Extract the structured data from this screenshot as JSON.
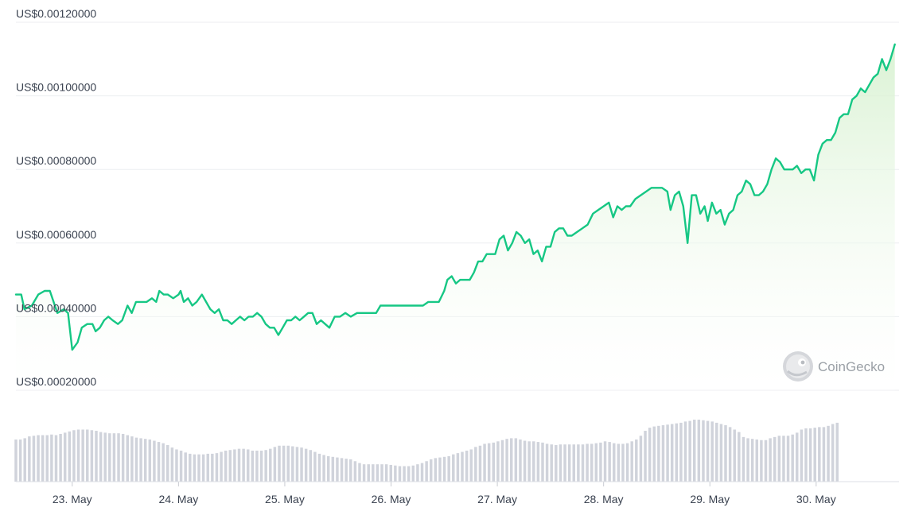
{
  "watermark": {
    "text": "CoinGecko",
    "icon": "coingecko-gecko-icon"
  },
  "colors": {
    "line": "#16c784",
    "fill_top": "#d6f1cf",
    "fill_bottom": "#ffffff",
    "grid": "#eceef1",
    "volume": "#d0d3db",
    "text": "#3a4250"
  },
  "chart_data": [
    {
      "type": "area",
      "title": "",
      "xlabel": "",
      "ylabel": "",
      "y_ticks": [
        "US$0.00020000",
        "US$0.00040000",
        "US$0.00060000",
        "US$0.00080000",
        "US$0.00100000",
        "US$0.00120000"
      ],
      "y_tick_values": [
        0.0002,
        0.0004,
        0.0006,
        0.0008,
        0.001,
        0.0012
      ],
      "ylim": [
        0.0002,
        0.0012
      ],
      "x_ticks": [
        "23. May",
        "24. May",
        "25. May",
        "26. May",
        "27. May",
        "28. May",
        "29. May",
        "30. May"
      ],
      "x_tick_values": [
        23,
        24,
        25,
        26,
        27,
        28,
        29,
        30
      ],
      "xlim": [
        22.47,
        30.78
      ],
      "grid": true,
      "legend": "none",
      "series": [
        {
          "points": [
            [
              22.47,
              0.00046
            ],
            [
              22.52,
              0.00046
            ],
            [
              22.55,
              0.00042
            ],
            [
              22.62,
              0.00043
            ],
            [
              22.68,
              0.00046
            ],
            [
              22.74,
              0.00047
            ],
            [
              22.79,
              0.00047
            ],
            [
              22.86,
              0.00041
            ],
            [
              22.92,
              0.00042
            ],
            [
              22.96,
              0.00041
            ],
            [
              23.0,
              0.00031
            ],
            [
              23.05,
              0.00033
            ],
            [
              23.09,
              0.00037
            ],
            [
              23.14,
              0.00038
            ],
            [
              23.19,
              0.00038
            ],
            [
              23.22,
              0.00036
            ],
            [
              23.26,
              0.00037
            ],
            [
              23.3,
              0.00039
            ],
            [
              23.34,
              0.0004
            ],
            [
              23.38,
              0.00039
            ],
            [
              23.43,
              0.00038
            ],
            [
              23.47,
              0.00039
            ],
            [
              23.52,
              0.00043
            ],
            [
              23.56,
              0.00041
            ],
            [
              23.6,
              0.00044
            ],
            [
              23.65,
              0.00044
            ],
            [
              23.7,
              0.00044
            ],
            [
              23.75,
              0.00045
            ],
            [
              23.79,
              0.00044
            ],
            [
              23.82,
              0.00047
            ],
            [
              23.86,
              0.00046
            ],
            [
              23.9,
              0.00046
            ],
            [
              23.95,
              0.00045
            ],
            [
              24.0,
              0.00046
            ],
            [
              24.02,
              0.00047
            ],
            [
              24.05,
              0.00044
            ],
            [
              24.09,
              0.00045
            ],
            [
              24.13,
              0.00043
            ],
            [
              24.17,
              0.00044
            ],
            [
              24.22,
              0.00046
            ],
            [
              24.26,
              0.00044
            ],
            [
              24.3,
              0.00042
            ],
            [
              24.34,
              0.00041
            ],
            [
              24.38,
              0.00042
            ],
            [
              24.42,
              0.00039
            ],
            [
              24.46,
              0.00039
            ],
            [
              24.5,
              0.00038
            ],
            [
              24.54,
              0.00039
            ],
            [
              24.58,
              0.0004
            ],
            [
              24.62,
              0.00039
            ],
            [
              24.66,
              0.0004
            ],
            [
              24.7,
              0.0004
            ],
            [
              24.74,
              0.00041
            ],
            [
              24.78,
              0.0004
            ],
            [
              24.82,
              0.00038
            ],
            [
              24.86,
              0.00037
            ],
            [
              24.9,
              0.00037
            ],
            [
              24.94,
              0.00035
            ],
            [
              24.98,
              0.00037
            ],
            [
              25.02,
              0.00039
            ],
            [
              25.06,
              0.00039
            ],
            [
              25.1,
              0.0004
            ],
            [
              25.14,
              0.00039
            ],
            [
              25.18,
              0.0004
            ],
            [
              25.22,
              0.00041
            ],
            [
              25.26,
              0.00041
            ],
            [
              25.3,
              0.00038
            ],
            [
              25.34,
              0.00039
            ],
            [
              25.38,
              0.00038
            ],
            [
              25.42,
              0.00037
            ],
            [
              25.47,
              0.0004
            ],
            [
              25.52,
              0.0004
            ],
            [
              25.57,
              0.00041
            ],
            [
              25.62,
              0.0004
            ],
            [
              25.68,
              0.00041
            ],
            [
              25.74,
              0.00041
            ],
            [
              25.8,
              0.00041
            ],
            [
              25.86,
              0.00041
            ],
            [
              25.9,
              0.00043
            ],
            [
              25.94,
              0.00043
            ],
            [
              26.0,
              0.00043
            ],
            [
              26.05,
              0.00043
            ],
            [
              26.1,
              0.00043
            ],
            [
              26.15,
              0.00043
            ],
            [
              26.2,
              0.00043
            ],
            [
              26.25,
              0.00043
            ],
            [
              26.3,
              0.00043
            ],
            [
              26.35,
              0.00044
            ],
            [
              26.4,
              0.00044
            ],
            [
              26.45,
              0.00044
            ],
            [
              26.5,
              0.00047
            ],
            [
              26.53,
              0.0005
            ],
            [
              26.57,
              0.00051
            ],
            [
              26.61,
              0.00049
            ],
            [
              26.65,
              0.0005
            ],
            [
              26.7,
              0.0005
            ],
            [
              26.74,
              0.0005
            ],
            [
              26.78,
              0.00052
            ],
            [
              26.82,
              0.00055
            ],
            [
              26.86,
              0.00055
            ],
            [
              26.9,
              0.00057
            ],
            [
              26.94,
              0.00057
            ],
            [
              26.98,
              0.00057
            ],
            [
              27.02,
              0.00061
            ],
            [
              27.06,
              0.00062
            ],
            [
              27.1,
              0.00058
            ],
            [
              27.14,
              0.0006
            ],
            [
              27.18,
              0.00063
            ],
            [
              27.22,
              0.00062
            ],
            [
              27.26,
              0.0006
            ],
            [
              27.3,
              0.00061
            ],
            [
              27.34,
              0.00057
            ],
            [
              27.38,
              0.00058
            ],
            [
              27.42,
              0.00055
            ],
            [
              27.46,
              0.00059
            ],
            [
              27.5,
              0.00059
            ],
            [
              27.54,
              0.00063
            ],
            [
              27.58,
              0.00064
            ],
            [
              27.62,
              0.00064
            ],
            [
              27.66,
              0.00062
            ],
            [
              27.7,
              0.00062
            ],
            [
              27.75,
              0.00063
            ],
            [
              27.8,
              0.00064
            ],
            [
              27.85,
              0.00065
            ],
            [
              27.9,
              0.00068
            ],
            [
              27.95,
              0.00069
            ],
            [
              28.0,
              0.0007
            ],
            [
              28.05,
              0.00071
            ],
            [
              28.09,
              0.00067
            ],
            [
              28.13,
              0.0007
            ],
            [
              28.17,
              0.00069
            ],
            [
              28.21,
              0.0007
            ],
            [
              28.25,
              0.0007
            ],
            [
              28.3,
              0.00072
            ],
            [
              28.35,
              0.00073
            ],
            [
              28.4,
              0.00074
            ],
            [
              28.45,
              0.00075
            ],
            [
              28.5,
              0.00075
            ],
            [
              28.55,
              0.00075
            ],
            [
              28.6,
              0.00074
            ],
            [
              28.63,
              0.00069
            ],
            [
              28.67,
              0.00073
            ],
            [
              28.71,
              0.00074
            ],
            [
              28.75,
              0.0007
            ],
            [
              28.79,
              0.0006
            ],
            [
              28.83,
              0.00073
            ],
            [
              28.87,
              0.00073
            ],
            [
              28.91,
              0.00068
            ],
            [
              28.95,
              0.0007
            ],
            [
              28.98,
              0.00066
            ],
            [
              29.02,
              0.00071
            ],
            [
              29.06,
              0.00068
            ],
            [
              29.1,
              0.00069
            ],
            [
              29.14,
              0.00065
            ],
            [
              29.18,
              0.00068
            ],
            [
              29.22,
              0.00069
            ],
            [
              29.26,
              0.00073
            ],
            [
              29.3,
              0.00074
            ],
            [
              29.34,
              0.00077
            ],
            [
              29.38,
              0.00076
            ],
            [
              29.42,
              0.00073
            ],
            [
              29.46,
              0.00073
            ],
            [
              29.5,
              0.00074
            ],
            [
              29.54,
              0.00076
            ],
            [
              29.58,
              0.0008
            ],
            [
              29.62,
              0.00083
            ],
            [
              29.66,
              0.00082
            ],
            [
              29.7,
              0.0008
            ],
            [
              29.74,
              0.0008
            ],
            [
              29.78,
              0.0008
            ],
            [
              29.82,
              0.00081
            ],
            [
              29.86,
              0.00079
            ],
            [
              29.9,
              0.0008
            ],
            [
              29.94,
              0.0008
            ],
            [
              29.98,
              0.00077
            ],
            [
              30.02,
              0.00084
            ],
            [
              30.06,
              0.00087
            ],
            [
              30.1,
              0.00088
            ],
            [
              30.14,
              0.00088
            ],
            [
              30.18,
              0.0009
            ],
            [
              30.22,
              0.00094
            ],
            [
              30.26,
              0.00095
            ],
            [
              30.3,
              0.00095
            ],
            [
              30.34,
              0.00099
            ],
            [
              30.38,
              0.001
            ],
            [
              30.42,
              0.00102
            ],
            [
              30.46,
              0.00101
            ],
            [
              30.5,
              0.00103
            ],
            [
              30.54,
              0.00105
            ],
            [
              30.58,
              0.00106
            ],
            [
              30.62,
              0.0011
            ],
            [
              30.66,
              0.00107
            ],
            [
              30.7,
              0.0011
            ],
            [
              30.74,
              0.00114
            ]
          ]
        }
      ]
    },
    {
      "type": "bar",
      "title": "",
      "xlabel": "",
      "ylabel": "",
      "y_axis": "none",
      "x_start": 22.47,
      "x_step": 0.042,
      "ylim": [
        0,
        1
      ],
      "values": [
        0.68,
        0.68,
        0.7,
        0.73,
        0.74,
        0.75,
        0.75,
        0.75,
        0.76,
        0.75,
        0.77,
        0.79,
        0.81,
        0.83,
        0.84,
        0.84,
        0.84,
        0.83,
        0.82,
        0.8,
        0.79,
        0.78,
        0.78,
        0.78,
        0.77,
        0.75,
        0.73,
        0.71,
        0.7,
        0.69,
        0.68,
        0.66,
        0.64,
        0.62,
        0.59,
        0.55,
        0.52,
        0.5,
        0.47,
        0.45,
        0.44,
        0.44,
        0.44,
        0.45,
        0.45,
        0.46,
        0.48,
        0.5,
        0.51,
        0.52,
        0.53,
        0.53,
        0.52,
        0.5,
        0.5,
        0.5,
        0.51,
        0.53,
        0.56,
        0.58,
        0.58,
        0.58,
        0.57,
        0.56,
        0.55,
        0.53,
        0.51,
        0.48,
        0.45,
        0.43,
        0.41,
        0.4,
        0.39,
        0.38,
        0.37,
        0.36,
        0.33,
        0.3,
        0.28,
        0.28,
        0.28,
        0.28,
        0.28,
        0.28,
        0.27,
        0.26,
        0.25,
        0.25,
        0.25,
        0.26,
        0.28,
        0.3,
        0.33,
        0.36,
        0.38,
        0.39,
        0.4,
        0.41,
        0.44,
        0.46,
        0.48,
        0.5,
        0.52,
        0.56,
        0.58,
        0.61,
        0.62,
        0.63,
        0.65,
        0.67,
        0.69,
        0.7,
        0.7,
        0.68,
        0.66,
        0.65,
        0.65,
        0.64,
        0.63,
        0.61,
        0.6,
        0.59,
        0.6,
        0.6,
        0.6,
        0.6,
        0.6,
        0.6,
        0.61,
        0.61,
        0.62,
        0.63,
        0.65,
        0.64,
        0.62,
        0.61,
        0.61,
        0.62,
        0.65,
        0.68,
        0.74,
        0.82,
        0.87,
        0.89,
        0.9,
        0.91,
        0.92,
        0.93,
        0.94,
        0.95,
        0.97,
        0.98,
        1.0,
        1.0,
        0.99,
        0.98,
        0.97,
        0.95,
        0.93,
        0.91,
        0.88,
        0.84,
        0.8,
        0.72,
        0.7,
        0.69,
        0.68,
        0.67,
        0.67,
        0.7,
        0.72,
        0.74,
        0.74,
        0.74,
        0.76,
        0.79,
        0.84,
        0.86,
        0.86,
        0.87,
        0.88,
        0.88,
        0.9,
        0.93,
        0.95
      ]
    }
  ]
}
